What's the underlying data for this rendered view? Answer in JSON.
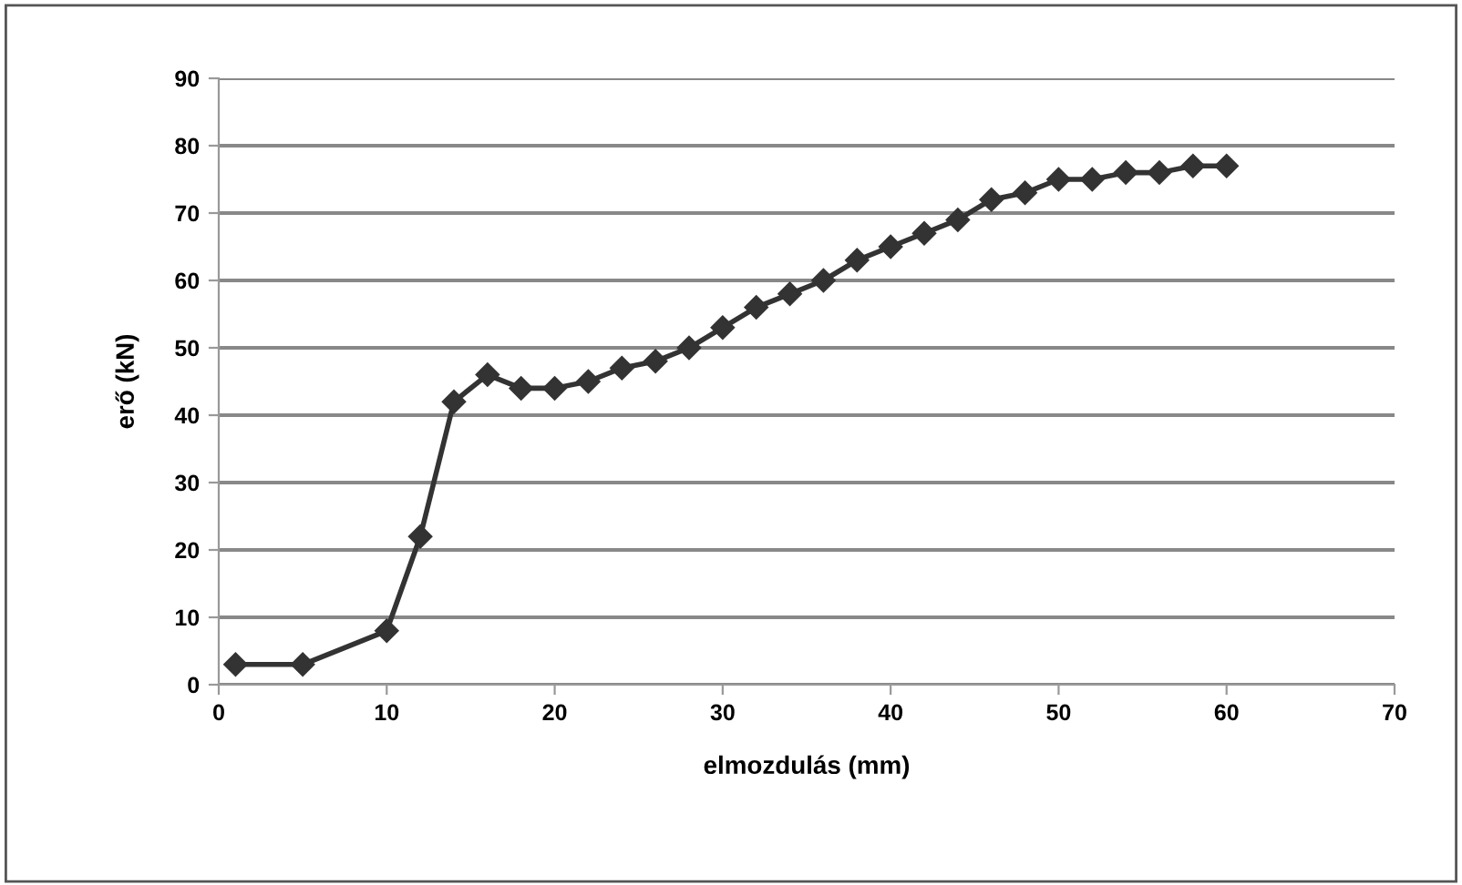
{
  "chart_data": {
    "type": "line",
    "xlabel": "elmozdulás (mm)",
    "ylabel": "erő (kN)",
    "x": [
      1,
      5,
      10,
      12,
      14,
      16,
      18,
      20,
      22,
      24,
      26,
      28,
      30,
      32,
      34,
      36,
      38,
      40,
      42,
      44,
      46,
      48,
      50,
      52,
      54,
      56,
      58,
      60
    ],
    "series": [
      {
        "color": "#333333",
        "values": [
          3,
          3,
          8,
          22,
          42,
          46,
          44,
          44,
          45,
          47,
          48,
          50,
          53,
          56,
          58,
          60,
          63,
          65,
          67,
          69,
          72,
          73,
          75,
          75,
          76,
          76,
          77,
          77
        ]
      }
    ],
    "xlim": [
      0,
      70
    ],
    "xticks": [
      0,
      10,
      20,
      30,
      40,
      50,
      60,
      70
    ],
    "ylim": [
      0,
      90
    ],
    "yticks": [
      0,
      10,
      20,
      30,
      40,
      50,
      60,
      70,
      80,
      90
    ],
    "grid": "y",
    "marker": "diamond",
    "line_style": "solid",
    "legend": false
  }
}
